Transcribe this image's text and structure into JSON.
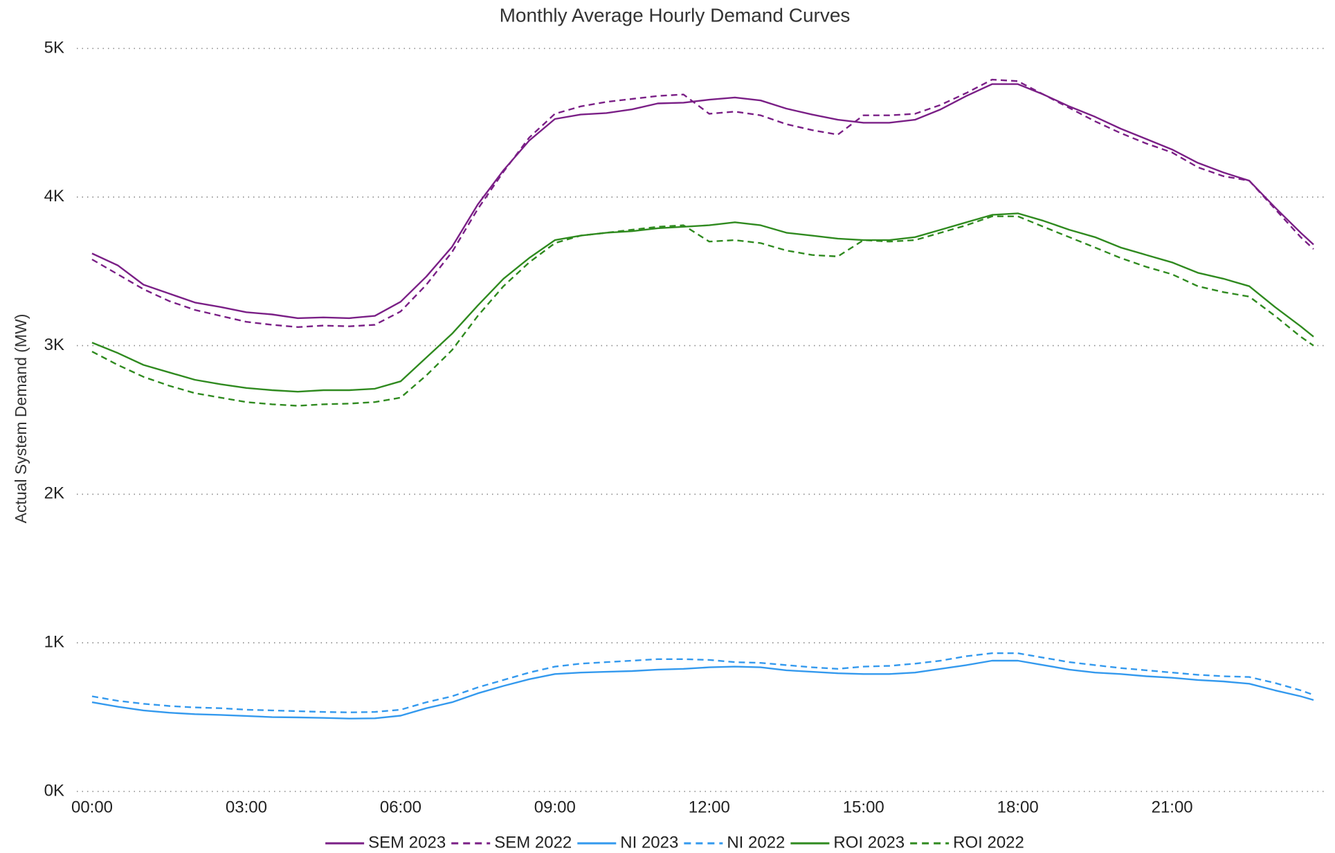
{
  "chart_data": {
    "type": "line",
    "title": "Monthly Average Hourly Demand Curves",
    "y_label": "Actual System Demand (MW)",
    "x": [
      0,
      0.5,
      1,
      1.5,
      2,
      2.5,
      3,
      3.5,
      4,
      4.5,
      5,
      5.5,
      6,
      6.5,
      7,
      7.5,
      8,
      8.5,
      9,
      9.5,
      10,
      10.5,
      11,
      11.5,
      12,
      12.5,
      13,
      13.5,
      14,
      14.5,
      15,
      15.5,
      16,
      16.5,
      17,
      17.5,
      18,
      18.5,
      19,
      19.5,
      20,
      20.5,
      21,
      21.5,
      22,
      22.5,
      23,
      23.5,
      23.75
    ],
    "xlim": [
      0,
      23.75
    ],
    "xticks": [
      {
        "value": 0,
        "label": "00:00"
      },
      {
        "value": 3,
        "label": "03:00"
      },
      {
        "value": 6,
        "label": "06:00"
      },
      {
        "value": 9,
        "label": "09:00"
      },
      {
        "value": 12,
        "label": "12:00"
      },
      {
        "value": 15,
        "label": "15:00"
      },
      {
        "value": 18,
        "label": "18:00"
      },
      {
        "value": 21,
        "label": "21:00"
      }
    ],
    "ylim": [
      0,
      5000
    ],
    "yticks": [
      {
        "value": 0,
        "label": "0K"
      },
      {
        "value": 1000,
        "label": "1K"
      },
      {
        "value": 2000,
        "label": "2K"
      },
      {
        "value": 3000,
        "label": "3K"
      },
      {
        "value": 4000,
        "label": "4K"
      },
      {
        "value": 5000,
        "label": "5K"
      }
    ],
    "grid": true,
    "legend": "bottom",
    "series": [
      {
        "name": "SEM 2023",
        "color": "#7a1f86",
        "style": "solid",
        "values": [
          3620,
          3540,
          3410,
          3350,
          3290,
          3260,
          3225,
          3210,
          3185,
          3190,
          3185,
          3200,
          3295,
          3465,
          3665,
          3950,
          4180,
          4380,
          4525,
          4555,
          4565,
          4590,
          4630,
          4635,
          4655,
          4670,
          4650,
          4595,
          4555,
          4520,
          4500,
          4500,
          4520,
          4590,
          4680,
          4760,
          4760,
          4690,
          4610,
          4540,
          4460,
          4390,
          4320,
          4230,
          4165,
          4110,
          3930,
          3760,
          3680
        ]
      },
      {
        "name": "SEM 2022",
        "color": "#7a1f86",
        "style": "dashed",
        "values": [
          3580,
          3480,
          3380,
          3300,
          3240,
          3200,
          3160,
          3140,
          3125,
          3135,
          3130,
          3140,
          3230,
          3410,
          3630,
          3920,
          4170,
          4400,
          4560,
          4610,
          4640,
          4660,
          4680,
          4690,
          4560,
          4575,
          4550,
          4490,
          4450,
          4420,
          4550,
          4550,
          4560,
          4620,
          4700,
          4790,
          4780,
          4690,
          4600,
          4510,
          4430,
          4360,
          4300,
          4200,
          4140,
          4110,
          3920,
          3730,
          3650
        ]
      },
      {
        "name": "NI 2023",
        "color": "#3399ee",
        "style": "solid",
        "values": [
          600,
          570,
          545,
          530,
          520,
          515,
          508,
          500,
          498,
          495,
          490,
          492,
          510,
          560,
          600,
          660,
          710,
          755,
          790,
          800,
          805,
          810,
          820,
          825,
          835,
          840,
          835,
          815,
          805,
          795,
          790,
          790,
          800,
          825,
          850,
          880,
          880,
          850,
          820,
          800,
          790,
          775,
          765,
          750,
          740,
          725,
          680,
          640,
          615
        ]
      },
      {
        "name": "NI 2022",
        "color": "#3399ee",
        "style": "dashed",
        "values": [
          640,
          610,
          590,
          575,
          565,
          560,
          550,
          545,
          540,
          535,
          532,
          535,
          550,
          600,
          640,
          700,
          750,
          800,
          840,
          860,
          870,
          880,
          890,
          890,
          885,
          870,
          865,
          850,
          835,
          825,
          840,
          845,
          860,
          880,
          910,
          930,
          930,
          900,
          870,
          850,
          830,
          815,
          800,
          785,
          775,
          770,
          730,
          680,
          650
        ]
      },
      {
        "name": "ROI 2023",
        "color": "#2f8a1f",
        "style": "solid",
        "values": [
          3020,
          2950,
          2870,
          2820,
          2770,
          2740,
          2715,
          2700,
          2690,
          2700,
          2700,
          2710,
          2760,
          2920,
          3080,
          3270,
          3450,
          3590,
          3710,
          3740,
          3760,
          3770,
          3790,
          3800,
          3810,
          3830,
          3810,
          3760,
          3740,
          3720,
          3710,
          3710,
          3730,
          3780,
          3830,
          3880,
          3890,
          3840,
          3780,
          3730,
          3660,
          3610,
          3560,
          3490,
          3450,
          3400,
          3260,
          3130,
          3060
        ]
      },
      {
        "name": "ROI 2022",
        "color": "#2f8a1f",
        "style": "dashed",
        "values": [
          2960,
          2870,
          2790,
          2730,
          2680,
          2650,
          2620,
          2605,
          2595,
          2605,
          2610,
          2620,
          2650,
          2800,
          2970,
          3200,
          3400,
          3560,
          3690,
          3740,
          3760,
          3780,
          3800,
          3810,
          3700,
          3710,
          3690,
          3640,
          3610,
          3600,
          3710,
          3700,
          3710,
          3760,
          3810,
          3870,
          3870,
          3800,
          3730,
          3660,
          3590,
          3530,
          3480,
          3400,
          3360,
          3330,
          3200,
          3060,
          3000
        ]
      }
    ]
  }
}
